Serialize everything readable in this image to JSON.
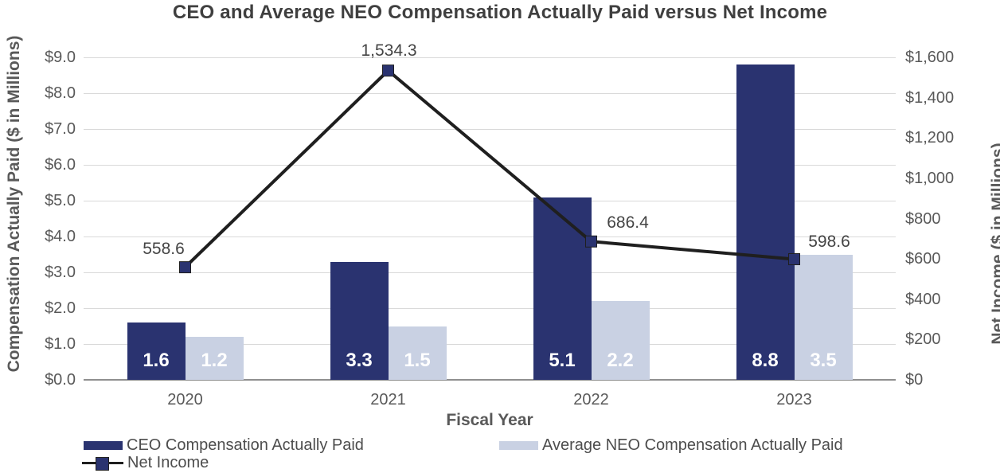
{
  "title": "CEO and Average NEO Compensation Actually Paid versus Net Income",
  "axes": {
    "left": {
      "title": "Compensation Actually Paid ($ in Millions)",
      "ticks": [
        "$9.0",
        "$8.0",
        "$7.0",
        "$6.0",
        "$5.0",
        "$4.0",
        "$3.0",
        "$2.0",
        "$1.0",
        "$0.0"
      ]
    },
    "right": {
      "title": "Net Income ($ in Millions)",
      "ticks": [
        "$1,600",
        "$1,400",
        "$1,200",
        "$1,000",
        "$800",
        "$600",
        "$400",
        "$200",
        "$0"
      ]
    },
    "x": {
      "title": "Fiscal Year",
      "categories": [
        "2020",
        "2021",
        "2022",
        "2023"
      ]
    }
  },
  "chart_data": {
    "type": "bar",
    "subtype": "grouped bars with secondary-axis line",
    "title": "CEO and Average NEO Compensation Actually Paid versus Net Income",
    "categories": [
      "2020",
      "2021",
      "2022",
      "2023"
    ],
    "xlabel": "Fiscal Year",
    "ylabel_left": "Compensation Actually Paid ($ in Millions)",
    "ylabel_right": "Net Income ($ in Millions)",
    "ylim_left": [
      0,
      9
    ],
    "ylim_right": [
      0,
      1600
    ],
    "grid": "horizontal",
    "legend_position": "bottom",
    "series": [
      {
        "name": "CEO Compensation Actually Paid",
        "type": "bar",
        "axis": "left",
        "values": [
          1.6,
          3.3,
          5.1,
          8.8
        ],
        "labels": [
          "1.6",
          "3.3",
          "5.1",
          "8.8"
        ],
        "color": "#2a3370"
      },
      {
        "name": "Average NEO Compensation Actually Paid",
        "type": "bar",
        "axis": "left",
        "values": [
          1.2,
          1.5,
          2.2,
          3.5
        ],
        "labels": [
          "1.2",
          "1.5",
          "2.2",
          "3.5"
        ],
        "color": "#c9d1e3"
      },
      {
        "name": "Net Income",
        "type": "line",
        "axis": "right",
        "values": [
          558.6,
          1534.3,
          686.4,
          598.6
        ],
        "labels": [
          "558.6",
          "1,534.3",
          "686.4",
          "598.6"
        ],
        "color": "#1f1f1f",
        "marker_color": "#2a3370",
        "marker_shape": "square"
      }
    ]
  },
  "colors": {
    "ceo_bar": "#2a3370",
    "neo_bar": "#c9d1e3",
    "net_income_line": "#1f1f1f",
    "marker_fill": "#2a3370",
    "gridline": "#d9d9d9",
    "axis_text": "#595959",
    "title_text": "#3f3f3f",
    "bar_value_text": "#ffffff"
  },
  "legend": {
    "items": [
      {
        "label": "CEO Compensation Actually Paid",
        "swatch": "rect-navy"
      },
      {
        "label": "Average NEO Compensation Actually Paid",
        "swatch": "rect-light"
      },
      {
        "label": "Net Income",
        "swatch": "line-square-marker"
      }
    ]
  }
}
